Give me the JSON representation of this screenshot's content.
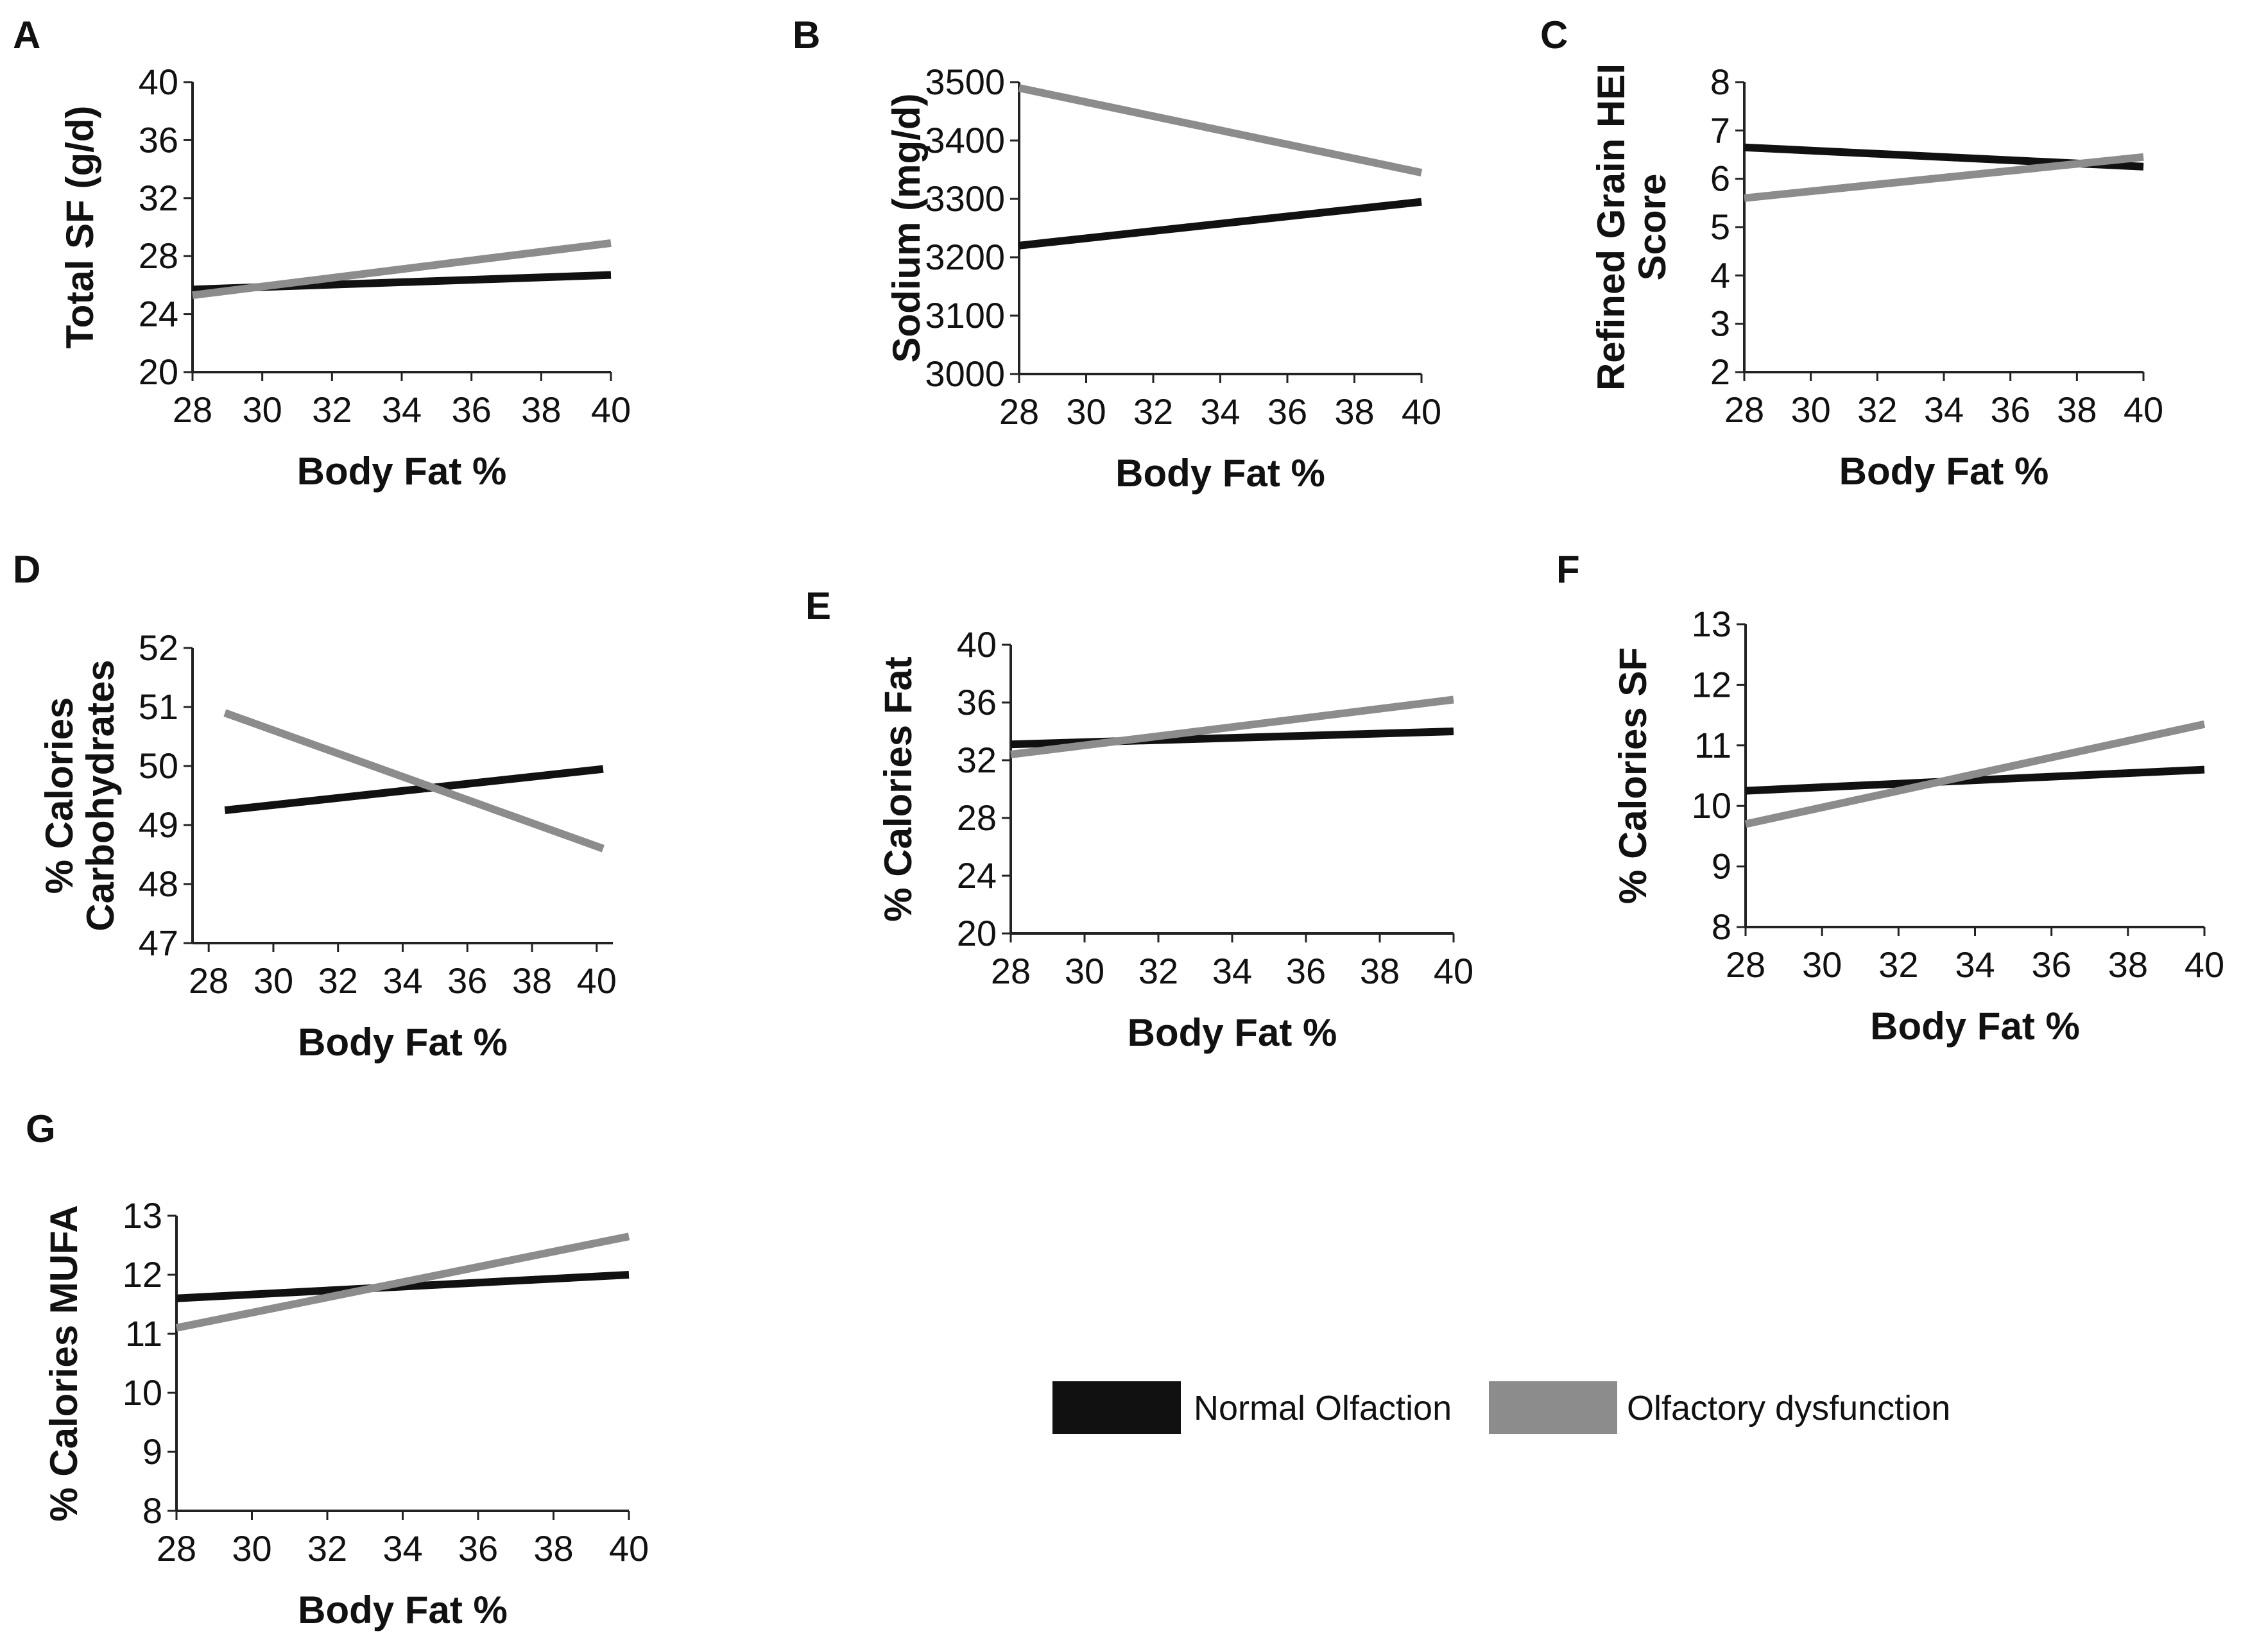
{
  "chart_data": [
    {
      "type": "line",
      "panel": "A",
      "title": "",
      "xlabel": "Body Fat %",
      "ylabel": [
        "Total SF (g/d)"
      ],
      "xlim": [
        28,
        40
      ],
      "ylim": [
        20,
        40
      ],
      "xticks": [
        "28",
        "30",
        "32",
        "34",
        "36",
        "38",
        "40"
      ],
      "yticks": [
        "20",
        "24",
        "28",
        "32",
        "36",
        "40"
      ],
      "x": [
        28,
        40
      ],
      "series": [
        {
          "name": "Normal Olfaction",
          "color": "#111111",
          "values": [
            25.7,
            26.7
          ]
        },
        {
          "name": "Olfactory dysfunction",
          "color": "#8c8c8c",
          "values": [
            25.3,
            28.9
          ]
        }
      ]
    },
    {
      "type": "line",
      "panel": "B",
      "title": "",
      "xlabel": "Body Fat %",
      "ylabel": [
        "Sodium (mg/d)"
      ],
      "xlim": [
        28,
        40
      ],
      "ylim": [
        3000,
        3500
      ],
      "xticks": [
        "28",
        "30",
        "32",
        "34",
        "36",
        "38",
        "40"
      ],
      "yticks": [
        "3000",
        "3100",
        "3200",
        "3300",
        "3400",
        "3500"
      ],
      "x": [
        28,
        40
      ],
      "series": [
        {
          "name": "Normal Olfaction",
          "color": "#111111",
          "values": [
            3220,
            3295
          ]
        },
        {
          "name": "Olfactory dysfunction",
          "color": "#8c8c8c",
          "values": [
            3490,
            3345
          ]
        }
      ]
    },
    {
      "type": "line",
      "panel": "C",
      "title": "",
      "xlabel": "Body Fat %",
      "ylabel": [
        "Refined Grain HEI",
        "Score"
      ],
      "xlim": [
        28,
        40
      ],
      "ylim": [
        2,
        8
      ],
      "xticks": [
        "28",
        "30",
        "32",
        "34",
        "36",
        "38",
        "40"
      ],
      "yticks": [
        "2",
        "3",
        "4",
        "5",
        "6",
        "7",
        "8"
      ],
      "x": [
        28,
        40
      ],
      "series": [
        {
          "name": "Normal Olfaction",
          "color": "#111111",
          "values": [
            6.65,
            6.25
          ]
        },
        {
          "name": "Olfactory dysfunction",
          "color": "#8c8c8c",
          "values": [
            5.6,
            6.45
          ]
        }
      ]
    },
    {
      "type": "line",
      "panel": "D",
      "title": "",
      "xlabel": "Body Fat %",
      "ylabel": [
        "% Calories",
        "Carbohydrates"
      ],
      "xlim": [
        27.5,
        40.5
      ],
      "ylim": [
        47,
        52
      ],
      "xticks": [
        "28",
        "30",
        "32",
        "34",
        "36",
        "38",
        "40"
      ],
      "yticks": [
        "47",
        "48",
        "49",
        "50",
        "51",
        "52"
      ],
      "x": [
        28.5,
        40.2
      ],
      "series": [
        {
          "name": "Normal Olfaction",
          "color": "#111111",
          "values": [
            49.25,
            49.95
          ]
        },
        {
          "name": "Olfactory dysfunction",
          "color": "#8c8c8c",
          "values": [
            50.9,
            48.6
          ]
        }
      ]
    },
    {
      "type": "line",
      "panel": "E",
      "title": "",
      "xlabel": "Body Fat %",
      "ylabel": [
        "% Calories Fat"
      ],
      "xlim": [
        28,
        40
      ],
      "ylim": [
        20,
        40
      ],
      "xticks": [
        "28",
        "30",
        "32",
        "34",
        "36",
        "38",
        "40"
      ],
      "yticks": [
        "20",
        "24",
        "28",
        "32",
        "36",
        "40"
      ],
      "x": [
        28,
        40
      ],
      "series": [
        {
          "name": "Normal Olfaction",
          "color": "#111111",
          "values": [
            33.1,
            34.0
          ]
        },
        {
          "name": "Olfactory dysfunction",
          "color": "#8c8c8c",
          "values": [
            32.4,
            36.2
          ]
        }
      ]
    },
    {
      "type": "line",
      "panel": "F",
      "title": "",
      "xlabel": "Body Fat %",
      "ylabel": [
        "% Calories SF"
      ],
      "xlim": [
        28,
        40
      ],
      "ylim": [
        8,
        13
      ],
      "xticks": [
        "28",
        "30",
        "32",
        "34",
        "36",
        "38",
        "40"
      ],
      "yticks": [
        "8",
        "9",
        "10",
        "11",
        "12",
        "13"
      ],
      "x": [
        28,
        40
      ],
      "series": [
        {
          "name": "Normal Olfaction",
          "color": "#111111",
          "values": [
            10.25,
            10.6
          ]
        },
        {
          "name": "Olfactory dysfunction",
          "color": "#8c8c8c",
          "values": [
            9.7,
            11.35
          ]
        }
      ]
    },
    {
      "type": "line",
      "panel": "G",
      "title": "",
      "xlabel": "Body Fat %",
      "ylabel": [
        "% Calories MUFA"
      ],
      "xlim": [
        28,
        40
      ],
      "ylim": [
        8,
        13
      ],
      "xticks": [
        "28",
        "30",
        "32",
        "34",
        "36",
        "38",
        "40"
      ],
      "yticks": [
        "8",
        "9",
        "10",
        "11",
        "12",
        "13"
      ],
      "x": [
        28,
        40
      ],
      "series": [
        {
          "name": "Normal Olfaction",
          "color": "#111111",
          "values": [
            11.6,
            12.0
          ]
        },
        {
          "name": "Olfactory dysfunction",
          "color": "#8c8c8c",
          "values": [
            11.1,
            12.65
          ]
        }
      ]
    }
  ],
  "legend": {
    "items": [
      {
        "label": "Normal Olfaction",
        "color": "#111111"
      },
      {
        "label": "Olfactory dysfunction",
        "color": "#8c8c8c"
      }
    ]
  }
}
